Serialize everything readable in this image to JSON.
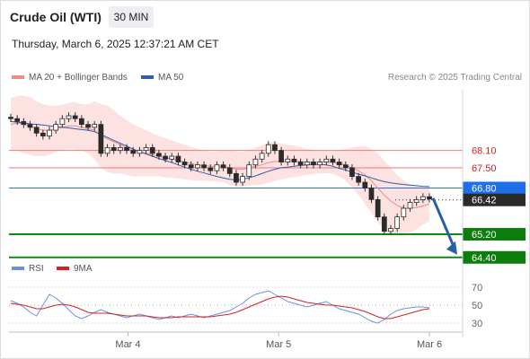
{
  "header": {
    "title": "Crude Oil (WTI)",
    "timeframe": "30 MIN",
    "timestamp": "Thursday, March 6, 2025 12:37:21 AM CET"
  },
  "legend": {
    "items": [
      {
        "label": "MA 20 + Bollinger Bands",
        "color": "#f08a8a"
      },
      {
        "label": "MA 50",
        "color": "#2f5fa8"
      }
    ],
    "credit": "Research © 2025 Trading Central"
  },
  "rsi_legend": {
    "items": [
      {
        "label": "RSI",
        "color": "#6b8fe0"
      },
      {
        "label": "9MA",
        "color": "#d92020"
      }
    ]
  },
  "chart_data": [
    {
      "type": "candlestick",
      "x_ticks": [
        "Mar 4",
        "Mar 5",
        "Mar 6"
      ],
      "price_levels": [
        {
          "label": "68.10",
          "value": 68.1,
          "style": "resistance"
        },
        {
          "label": "67.50",
          "value": 67.5,
          "style": "resistance"
        },
        {
          "label": "66.80",
          "value": 66.8,
          "style": "pivot"
        },
        {
          "label": "66.42",
          "value": 66.42,
          "style": "last"
        },
        {
          "label": "65.20",
          "value": 65.2,
          "style": "support"
        },
        {
          "label": "64.40",
          "value": 64.4,
          "style": "support"
        }
      ],
      "ylim": [
        64.3,
        70.2
      ],
      "close_series": [
        69.2,
        69.1,
        69.0,
        68.9,
        68.7,
        68.6,
        68.8,
        69.0,
        69.2,
        69.3,
        69.2,
        69.0,
        68.9,
        69.0,
        68.0,
        68.2,
        68.1,
        68.2,
        68.1,
        68.0,
        68.1,
        68.2,
        68.0,
        67.9,
        67.8,
        67.9,
        67.7,
        67.6,
        67.5,
        67.6,
        67.5,
        67.4,
        67.6,
        67.5,
        67.3,
        67.0,
        67.2,
        67.6,
        67.8,
        68.0,
        68.3,
        68.1,
        67.7,
        67.8,
        67.7,
        67.6,
        67.7,
        67.6,
        67.7,
        67.8,
        67.7,
        67.6,
        67.5,
        67.2,
        67.0,
        66.8,
        66.4,
        65.8,
        65.3,
        65.4,
        65.8,
        66.1,
        66.3,
        66.4,
        66.5,
        66.42
      ],
      "ma20": [
        69.0,
        69.05,
        69.0,
        68.95,
        68.85,
        68.8,
        68.8,
        68.85,
        68.9,
        68.95,
        68.95,
        68.9,
        68.85,
        68.8,
        68.6,
        68.5,
        68.4,
        68.3,
        68.2,
        68.1,
        68.05,
        68.0,
        67.95,
        67.9,
        67.85,
        67.8,
        67.75,
        67.7,
        67.65,
        67.6,
        67.58,
        67.55,
        67.55,
        67.55,
        67.5,
        67.45,
        67.45,
        67.5,
        67.55,
        67.6,
        67.68,
        67.72,
        67.72,
        67.72,
        67.72,
        67.72,
        67.7,
        67.7,
        67.7,
        67.7,
        67.68,
        67.65,
        67.6,
        67.5,
        67.4,
        67.25,
        67.05,
        66.8,
        66.55,
        66.35,
        66.2,
        66.1,
        66.1,
        66.12,
        66.18,
        66.25
      ],
      "ma50": [
        69.1,
        69.08,
        69.05,
        69.02,
        69.0,
        68.98,
        68.95,
        68.92,
        68.9,
        68.88,
        68.85,
        68.82,
        68.8,
        68.75,
        68.65,
        68.55,
        68.45,
        68.35,
        68.25,
        68.15,
        68.05,
        67.98,
        67.9,
        67.82,
        67.75,
        67.68,
        67.6,
        67.52,
        67.45,
        67.38,
        67.32,
        67.26,
        67.2,
        67.15,
        67.1,
        67.08,
        67.1,
        67.15,
        67.22,
        67.3,
        67.38,
        67.45,
        67.5,
        67.52,
        67.55,
        67.58,
        67.6,
        67.62,
        67.62,
        67.6,
        67.55,
        67.48,
        67.42,
        67.35,
        67.28,
        67.22,
        67.15,
        67.08,
        67.02,
        66.98,
        66.95,
        66.92,
        66.9,
        66.88,
        66.86,
        66.85
      ],
      "bb_width": [
        0.9,
        0.95,
        1.0,
        1.0,
        0.95,
        0.9,
        0.85,
        0.8,
        0.78,
        0.8,
        0.82,
        0.8,
        0.85,
        1.0,
        1.1,
        1.15,
        1.1,
        1.0,
        0.95,
        0.9,
        0.85,
        0.8,
        0.75,
        0.7,
        0.68,
        0.65,
        0.62,
        0.6,
        0.58,
        0.55,
        0.52,
        0.5,
        0.52,
        0.55,
        0.6,
        0.62,
        0.6,
        0.62,
        0.65,
        0.68,
        0.7,
        0.68,
        0.62,
        0.58,
        0.55,
        0.5,
        0.45,
        0.42,
        0.4,
        0.38,
        0.4,
        0.45,
        0.55,
        0.7,
        0.85,
        1.0,
        1.1,
        1.2,
        1.2,
        1.15,
        1.05,
        0.95,
        0.85,
        0.75,
        0.65,
        0.6
      ],
      "projection": {
        "from": 66.42,
        "to": 64.4
      }
    },
    {
      "type": "line",
      "series_names": [
        "RSI",
        "9MA"
      ],
      "y_ticks": [
        "70",
        "50",
        "30"
      ],
      "ylim": [
        20,
        80
      ],
      "rsi": [
        55,
        52,
        48,
        42,
        38,
        50,
        62,
        58,
        52,
        45,
        38,
        35,
        38,
        42,
        45,
        42,
        40,
        38,
        36,
        38,
        40,
        38,
        36,
        34,
        36,
        38,
        36,
        38,
        40,
        38,
        36,
        38,
        40,
        42,
        44,
        48,
        52,
        58,
        62,
        64,
        66,
        62,
        58,
        54,
        52,
        50,
        48,
        50,
        52,
        54,
        50,
        46,
        44,
        42,
        40,
        36,
        32,
        30,
        34,
        40,
        44,
        46,
        47,
        48,
        48,
        47
      ],
      "ma9": [
        52,
        51,
        50,
        48,
        46,
        46,
        48,
        50,
        51,
        50,
        48,
        45,
        42,
        41,
        41,
        41,
        40,
        39,
        38,
        38,
        38,
        38,
        37,
        36,
        36,
        36,
        37,
        37,
        37,
        37,
        37,
        37,
        38,
        39,
        40,
        42,
        45,
        48,
        51,
        54,
        57,
        59,
        60,
        59,
        57,
        55,
        53,
        52,
        51,
        50,
        50,
        49,
        48,
        47,
        45,
        43,
        40,
        37,
        35,
        35,
        37,
        39,
        41,
        43,
        45,
        46
      ]
    }
  ]
}
